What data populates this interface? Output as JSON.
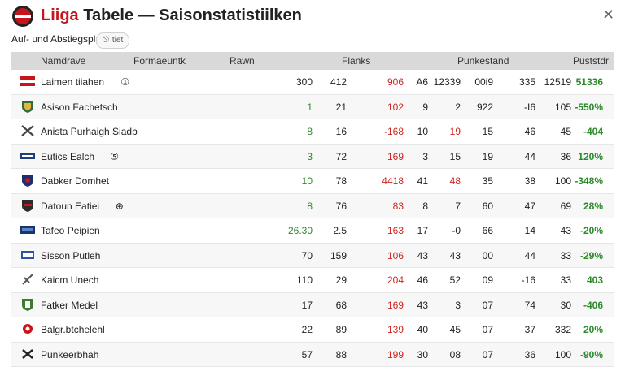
{
  "window": {
    "title_accent": "Liiga",
    "title_rest": " Tabele — Saisonstatistiilken",
    "close_label": "✕",
    "subtitle": "Auf- und Abstiegsplatze",
    "chip_icon": "⎋",
    "chip_label": "tiet",
    "colors": {
      "accent": "#c8151b",
      "header_bg": "#d9d9d9",
      "positive": "#2a8a2a",
      "negative": "#d0251f"
    }
  },
  "table": {
    "headers": {
      "team": "Namdrave",
      "form": "Formaeuntk",
      "raw": "Rawn",
      "flanks": "Flanks",
      "punkte": "Punkestand",
      "pct": "Puststdr"
    },
    "rows": [
      {
        "team": "Laimen tiiahen",
        "badge": "①",
        "crest": "banner-red",
        "c1": "300",
        "c2": "412",
        "c3": "906",
        "c3c": "red",
        "c4": "A6",
        "c5": "12339",
        "c5c": "",
        "c6": "00i9",
        "c7": "335",
        "c8": "12519",
        "pct": "51336",
        "pctc": "green"
      },
      {
        "team": "Asison Fachetsch",
        "badge": "",
        "crest": "shield-green",
        "c1": "1",
        "c1c": "green",
        "c2": "21",
        "c3": "102",
        "c3c": "red",
        "c4": "9",
        "c5": "2",
        "c5c": "",
        "c6": "922",
        "c7": "-I6",
        "c8": "105",
        "pct": "-550%",
        "pctc": "green"
      },
      {
        "team": "Anista Purhaigh Siadb",
        "badge": "",
        "crest": "cross-icon",
        "c1": "8",
        "c1c": "green",
        "c2": "16",
        "c3": "-168",
        "c3c": "red",
        "c4": "10",
        "c5": "19",
        "c5c": "red",
        "c6": "15",
        "c7": "46",
        "c8": "45",
        "pct": "-404",
        "pctc": "green"
      },
      {
        "team": "Eutics Ealch",
        "badge": "⑤",
        "crest": "bar-blue",
        "c1": "3",
        "c1c": "green",
        "c2": "72",
        "c3": "169",
        "c3c": "red",
        "c4": "3",
        "c5": "15",
        "c5c": "",
        "c6": "19",
        "c7": "44",
        "c8": "36",
        "pct": "120%",
        "pctc": "green"
      },
      {
        "team": "Dabker Domhet",
        "badge": "",
        "crest": "shield-navy",
        "c1": "10",
        "c1c": "green",
        "c2": "78",
        "c3": "4418",
        "c3c": "red",
        "c4": "41",
        "c5": "48",
        "c5c": "red",
        "c6": "35",
        "c7": "38",
        "c8": "100",
        "pct": "-348%",
        "pctc": "green"
      },
      {
        "team": "Datoun Eatiei",
        "badge": "⊕",
        "crest": "shield-dark",
        "c1": "8",
        "c1c": "green",
        "c2": "76",
        "c3": "83",
        "c3c": "red",
        "c4": "8",
        "c5": "7",
        "c5c": "",
        "c6": "60",
        "c7": "47",
        "c8": "69",
        "pct": "28%",
        "pctc": "green"
      },
      {
        "team": "Tafeo Peipien",
        "badge": "",
        "crest": "bar-navy",
        "c1": "26.30",
        "c1c": "green",
        "c2": "2.5",
        "c3": "163",
        "c3c": "red",
        "c4": "17",
        "c5": "-0",
        "c5c": "",
        "c6": "66",
        "c7": "14",
        "c8": "43",
        "pct": "-20%",
        "pctc": "green"
      },
      {
        "team": "Sisson Putleh",
        "badge": "",
        "crest": "bar-blue2",
        "c1": "70",
        "c1c": "",
        "c2": "159",
        "c3": "106",
        "c3c": "red",
        "c4": "43",
        "c5": "43",
        "c5c": "",
        "c6": "00",
        "c7": "44",
        "c8": "33",
        "pct": "-29%",
        "pctc": "green"
      },
      {
        "team": "Kaicm Unech",
        "badge": "",
        "crest": "leaf-icon",
        "c1": "110",
        "c1c": "",
        "c2": "29",
        "c3": "204",
        "c3c": "red",
        "c4": "46",
        "c5": "52",
        "c5c": "",
        "c6": "09",
        "c7": "-16",
        "c8": "33",
        "pct": "403",
        "pctc": "green"
      },
      {
        "team": "Fatker Medel",
        "badge": "",
        "crest": "shield-green2",
        "c1": "17",
        "c1c": "",
        "c2": "68",
        "c3": "169",
        "c3c": "red",
        "c4": "43",
        "c5": "3",
        "c5c": "",
        "c6": "07",
        "c7": "74",
        "c8": "30",
        "pct": "-406",
        "pctc": "green"
      },
      {
        "team": "Balgr.btchelehl",
        "badge": "",
        "crest": "flower-red",
        "c1": "22",
        "c1c": "",
        "c2": "89",
        "c3": "139",
        "c3c": "red",
        "c4": "40",
        "c5": "45",
        "c5c": "",
        "c6": "07",
        "c7": "37",
        "c8": "332",
        "pct": "20%",
        "pctc": "green"
      },
      {
        "team": "Punkeerbhah",
        "badge": "",
        "crest": "cross-dark",
        "c1": "57",
        "c1c": "",
        "c2": "88",
        "c3": "199",
        "c3c": "red",
        "c4": "30",
        "c5": "08",
        "c5c": "",
        "c6": "07",
        "c7": "36",
        "c8": "100",
        "pct": "-90%",
        "pctc": "green"
      }
    ]
  }
}
